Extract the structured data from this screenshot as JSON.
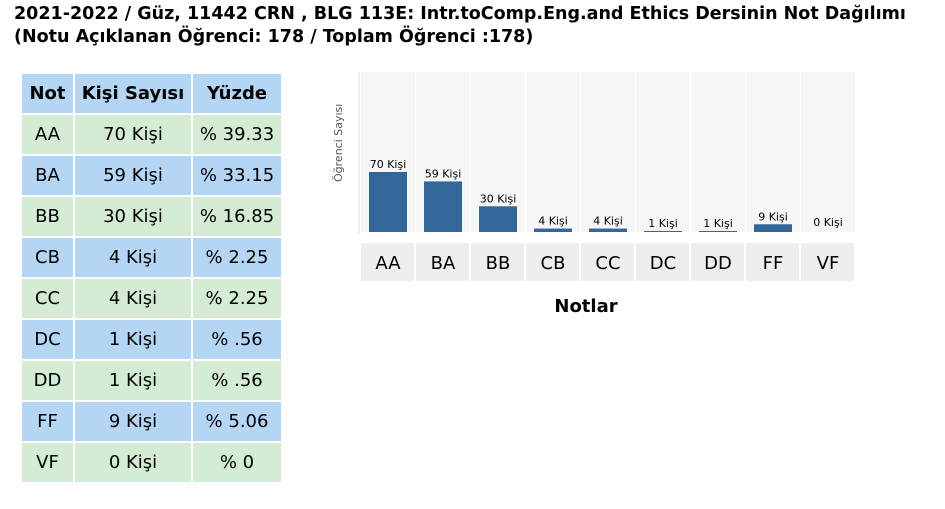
{
  "title_line1": "2021-2022 / Güz, 11442 CRN , BLG 113E: Intr.toComp.Eng.and Ethics Dersinin Not Dağılımı",
  "title_line2": "(Notu Açıklanan Öğrenci: 178 / Toplam Öğrenci :178)",
  "table": {
    "headers": [
      "Not",
      "Kişi Sayısı",
      "Yüzde"
    ],
    "rows": [
      {
        "grade": "AA",
        "count": "70 Kişi",
        "percent": "% 39.33"
      },
      {
        "grade": "BA",
        "count": "59 Kişi",
        "percent": "% 33.15"
      },
      {
        "grade": "BB",
        "count": "30 Kişi",
        "percent": "% 16.85"
      },
      {
        "grade": "CB",
        "count": "4 Kişi",
        "percent": "% 2.25"
      },
      {
        "grade": "CC",
        "count": "4 Kişi",
        "percent": "% 2.25"
      },
      {
        "grade": "DC",
        "count": "1 Kişi",
        "percent": "% .56"
      },
      {
        "grade": "DD",
        "count": "1 Kişi",
        "percent": "% .56"
      },
      {
        "grade": "FF",
        "count": "9 Kişi",
        "percent": "% 5.06"
      },
      {
        "grade": "VF",
        "count": "0 Kişi",
        "percent": "% 0"
      }
    ]
  },
  "chart_data": {
    "type": "bar",
    "categories": [
      "AA",
      "BA",
      "BB",
      "CB",
      "CC",
      "DC",
      "DD",
      "FF",
      "VF"
    ],
    "values": [
      70,
      59,
      30,
      4,
      4,
      1,
      1,
      9,
      0
    ],
    "data_labels": [
      "70 Kişi",
      "59 Kişi",
      "30 Kişi",
      "4 Kişi",
      "4 Kişi",
      "1 Kişi",
      "1 Kişi",
      "9 Kişi",
      "0 Kişi"
    ],
    "xlabel": "Notlar",
    "ylabel": "Öğrenci Sayısı",
    "ylim": [
      0,
      70
    ],
    "bar_color": "#336699",
    "grid": false
  }
}
